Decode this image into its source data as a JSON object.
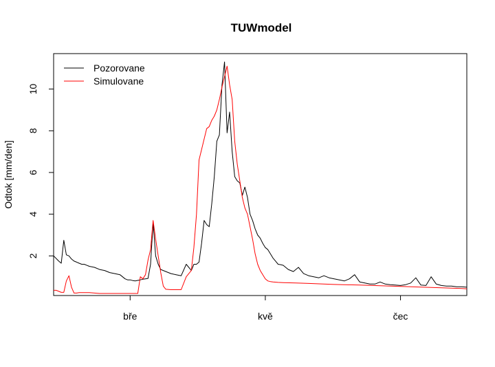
{
  "chart_data": {
    "type": "line",
    "title": "TUWmodel",
    "xlabel": "",
    "ylabel": "Odtok [mm/den]",
    "xlim": [
      0,
      162
    ],
    "ylim": [
      0.1,
      11.7
    ],
    "yticks": [
      2,
      4,
      6,
      8,
      10
    ],
    "xticks": [
      {
        "label": "bře",
        "x": 30
      },
      {
        "label": "kvě",
        "x": 83
      },
      {
        "label": "čec",
        "x": 136
      }
    ],
    "grid": false,
    "legend_position": "top-left",
    "series": [
      {
        "name": "Pozorovane",
        "color": "#000000",
        "x": [
          0,
          2,
          3,
          4,
          5,
          6,
          7,
          8,
          9,
          10,
          11,
          12,
          14,
          16,
          18,
          20,
          22,
          24,
          26,
          28,
          29,
          30,
          31,
          32,
          34,
          35,
          36,
          37,
          38,
          39,
          40,
          41,
          42,
          44,
          46,
          48,
          50,
          52,
          54,
          55,
          56,
          57,
          58,
          59,
          60,
          61,
          62,
          63,
          64,
          65,
          66,
          67,
          68,
          69,
          70,
          71,
          72,
          73,
          74,
          75,
          76,
          77,
          78,
          79,
          80,
          81,
          82,
          83,
          84,
          85,
          86,
          87,
          88,
          89,
          90,
          92,
          94,
          96,
          98,
          100,
          102,
          104,
          106,
          108,
          110,
          112,
          114,
          116,
          118,
          120,
          122,
          124,
          126,
          128,
          130,
          132,
          134,
          136,
          138,
          140,
          142,
          144,
          146,
          148,
          150,
          152,
          154,
          156,
          158,
          160,
          162
        ],
        "y": [
          2.0,
          1.75,
          1.65,
          2.75,
          2.05,
          2.0,
          1.85,
          1.75,
          1.7,
          1.65,
          1.6,
          1.6,
          1.5,
          1.45,
          1.35,
          1.3,
          1.2,
          1.15,
          1.1,
          0.9,
          0.85,
          0.85,
          0.82,
          0.8,
          0.85,
          0.88,
          0.9,
          0.92,
          1.6,
          3.6,
          2.0,
          1.6,
          1.35,
          1.25,
          1.15,
          1.1,
          1.05,
          1.6,
          1.3,
          1.6,
          1.6,
          1.7,
          2.6,
          3.7,
          3.5,
          3.4,
          4.5,
          5.8,
          7.5,
          7.8,
          10.2,
          11.3,
          7.9,
          8.9,
          7.0,
          5.8,
          5.6,
          5.5,
          4.9,
          5.3,
          4.8,
          4.0,
          3.7,
          3.3,
          3.0,
          2.85,
          2.6,
          2.4,
          2.3,
          2.1,
          1.9,
          1.75,
          1.6,
          1.58,
          1.55,
          1.35,
          1.25,
          1.45,
          1.15,
          1.05,
          1.0,
          0.95,
          1.05,
          0.95,
          0.9,
          0.85,
          0.8,
          0.9,
          1.1,
          0.75,
          0.7,
          0.65,
          0.65,
          0.75,
          0.65,
          0.62,
          0.6,
          0.58,
          0.62,
          0.7,
          0.95,
          0.6,
          0.58,
          1.0,
          0.65,
          0.58,
          0.55,
          0.55,
          0.52,
          0.52,
          0.5
        ]
      },
      {
        "name": "Simulovane",
        "color": "#ff0000",
        "x": [
          0,
          1,
          2,
          3,
          4,
          5,
          6,
          7,
          8,
          9,
          10,
          11,
          12,
          14,
          16,
          18,
          20,
          22,
          24,
          26,
          28,
          30,
          32,
          33,
          34,
          35,
          36,
          37,
          38,
          39,
          40,
          41,
          42,
          43,
          44,
          46,
          48,
          50,
          52,
          54,
          55,
          56,
          57,
          58,
          59,
          60,
          61,
          62,
          63,
          64,
          65,
          66,
          67,
          68,
          69,
          70,
          71,
          72,
          73,
          74,
          75,
          76,
          77,
          78,
          79,
          80,
          81,
          82,
          83,
          84,
          85,
          86,
          88,
          90,
          95,
          100,
          110,
          120,
          130,
          140,
          150,
          160,
          162
        ],
        "y": [
          0.35,
          0.35,
          0.3,
          0.25,
          0.25,
          0.8,
          1.05,
          0.5,
          0.22,
          0.22,
          0.24,
          0.24,
          0.24,
          0.24,
          0.22,
          0.2,
          0.2,
          0.2,
          0.2,
          0.2,
          0.2,
          0.2,
          0.2,
          0.2,
          1.0,
          0.9,
          1.1,
          1.8,
          2.3,
          3.7,
          2.8,
          2.0,
          1.2,
          0.55,
          0.4,
          0.38,
          0.38,
          0.38,
          1.0,
          1.3,
          2.4,
          4.0,
          6.6,
          7.1,
          7.6,
          8.1,
          8.2,
          8.5,
          8.7,
          9.0,
          9.5,
          10.1,
          10.6,
          11.1,
          10.2,
          9.5,
          7.5,
          6.4,
          5.6,
          4.8,
          4.3,
          4.0,
          3.4,
          2.8,
          2.1,
          1.6,
          1.3,
          1.1,
          0.9,
          0.8,
          0.77,
          0.75,
          0.73,
          0.72,
          0.7,
          0.68,
          0.63,
          0.6,
          0.56,
          0.52,
          0.48,
          0.44,
          0.42
        ]
      }
    ]
  }
}
